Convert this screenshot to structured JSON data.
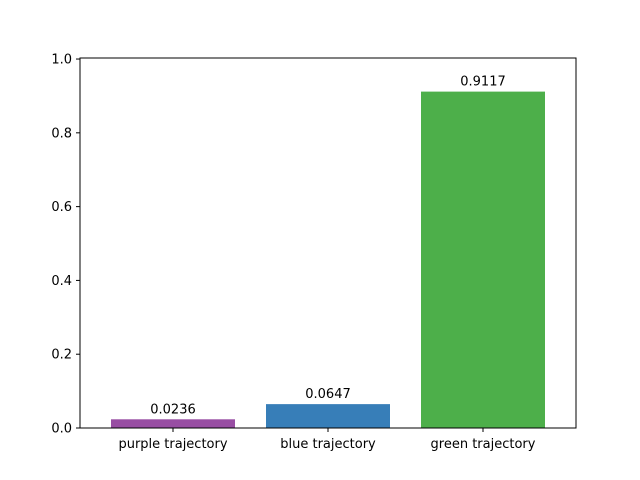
{
  "chart_data": {
    "type": "bar",
    "title": "",
    "xlabel": "",
    "ylabel": "",
    "categories": [
      "purple trajectory",
      "blue trajectory",
      "green trajectory"
    ],
    "values": [
      0.0236,
      0.0647,
      0.9117
    ],
    "value_labels": [
      "0.0236",
      "0.0647",
      "0.9117"
    ],
    "bar_colors": [
      "#984ea3",
      "#377eb8",
      "#4daf4a"
    ],
    "ylim": [
      0,
      1.0
    ],
    "yticks": [
      0.0,
      0.2,
      0.4,
      0.6,
      0.8,
      1.0
    ],
    "ytick_labels": [
      "0.0",
      "0.2",
      "0.4",
      "0.6",
      "0.8",
      "1.0"
    ],
    "grid": false,
    "legend": "none"
  }
}
